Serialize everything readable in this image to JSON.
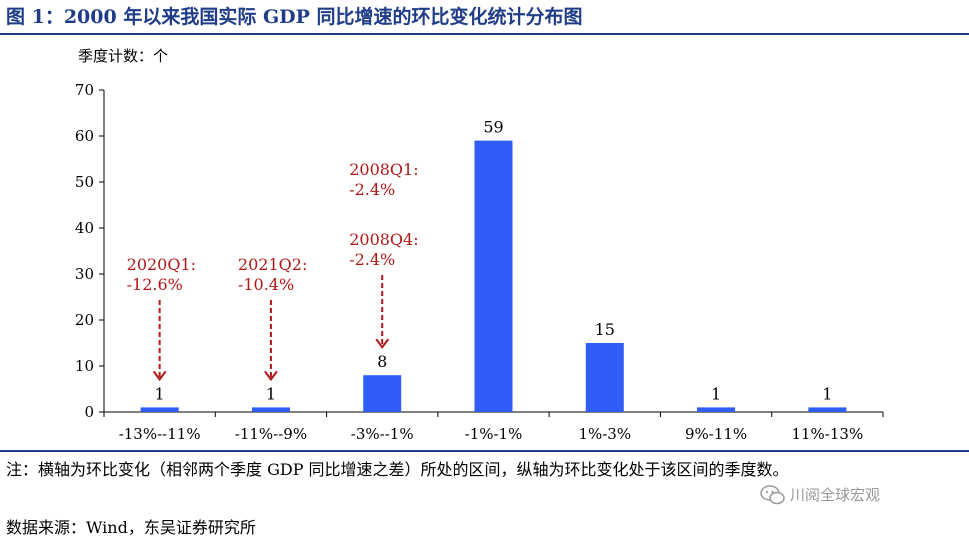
{
  "title": "图 1：2000 年以来我国实际 GDP 同比增速的环比变化统计分布图",
  "note": "注：横轴为环比变化（相邻两个季度 GDP 同比增速之差）所处的区间，纵轴为环比变化处于该区间的季度数。",
  "source": "数据来源：Wind，东吴证券研究所",
  "watermark": "川阅全球宏观",
  "colors": {
    "bar": "#2f5df5",
    "annotation": "#b01818",
    "title": "#1f3c88"
  },
  "chart_data": {
    "type": "bar",
    "ylabel": "季度计数：个",
    "ylim": [
      0,
      70
    ],
    "yticks": [
      0,
      10,
      20,
      30,
      40,
      50,
      60,
      70
    ],
    "categories": [
      "-13%--11%",
      "-11%--9%",
      "-3%--1%",
      "-1%-1%",
      "1%-3%",
      "9%-11%",
      "11%-13%"
    ],
    "values": [
      1,
      1,
      8,
      59,
      15,
      1,
      1
    ],
    "data_labels": [
      "1",
      "1",
      "8",
      "59",
      "15",
      "1",
      "1"
    ],
    "grid": false,
    "legend": "none",
    "annotations": [
      {
        "category_index": 0,
        "lines": [
          "2020Q1:",
          "-12.6%"
        ]
      },
      {
        "category_index": 1,
        "lines": [
          "2021Q2:",
          "-10.4%"
        ]
      },
      {
        "category_index": 2,
        "lines": [
          "2008Q1:",
          "-2.4%"
        ]
      },
      {
        "category_index": 2,
        "lines": [
          "2008Q4:",
          "-2.4%"
        ]
      }
    ]
  }
}
